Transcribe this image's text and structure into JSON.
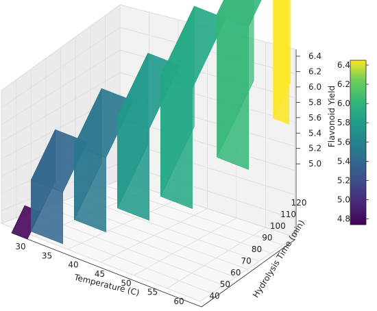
{
  "chart_data": {
    "type": "surface3d",
    "title": "",
    "xlabel": "Temperature (C)",
    "ylabel": "Hydrolysis Time (min)",
    "zlabel": "Flavonoid Yield",
    "x_ticks": [
      30,
      35,
      40,
      45,
      50,
      55,
      60
    ],
    "y_ticks": [
      40,
      50,
      60,
      70,
      80,
      90,
      100,
      110,
      120
    ],
    "z_ticks": [
      "5.0",
      "5.2",
      "5.4",
      "5.6",
      "5.8",
      "6.0",
      "6.2",
      "6.4"
    ],
    "colorbar_ticks": [
      "4.8",
      "5.0",
      "5.2",
      "5.4",
      "5.6",
      "5.8",
      "6.0",
      "6.2",
      "6.4"
    ],
    "colormap": "viridis",
    "xlim": [
      30,
      60
    ],
    "ylim": [
      40,
      120
    ],
    "zlim": [
      4.85,
      6.4
    ],
    "grid": true,
    "colorbar_placement": "right",
    "points": [
      {
        "temperature": 30,
        "time": 40,
        "yield": 4.85
      },
      {
        "temperature": 35,
        "time": 50,
        "yield": 5.3
      },
      {
        "temperature": 40,
        "time": 60,
        "yield": 5.5
      },
      {
        "temperature": 45,
        "time": 70,
        "yield": 5.65
      },
      {
        "temperature": 50,
        "time": 80,
        "yield": 5.9
      },
      {
        "temperature": 55,
        "time": 100,
        "yield": 6.1
      },
      {
        "temperature": 60,
        "time": 120,
        "yield": 6.4
      }
    ],
    "layers": [
      {
        "yield": 4.85,
        "color": "#46085c"
      },
      {
        "yield": 5.3,
        "color": "#31668e"
      },
      {
        "yield": 5.5,
        "color": "#2a788e"
      },
      {
        "yield": 5.65,
        "color": "#1f998a"
      },
      {
        "yield": 5.9,
        "color": "#22a884"
      },
      {
        "yield": 6.1,
        "color": "#35b779"
      },
      {
        "yield": 6.4,
        "color": "#fde725"
      }
    ]
  }
}
